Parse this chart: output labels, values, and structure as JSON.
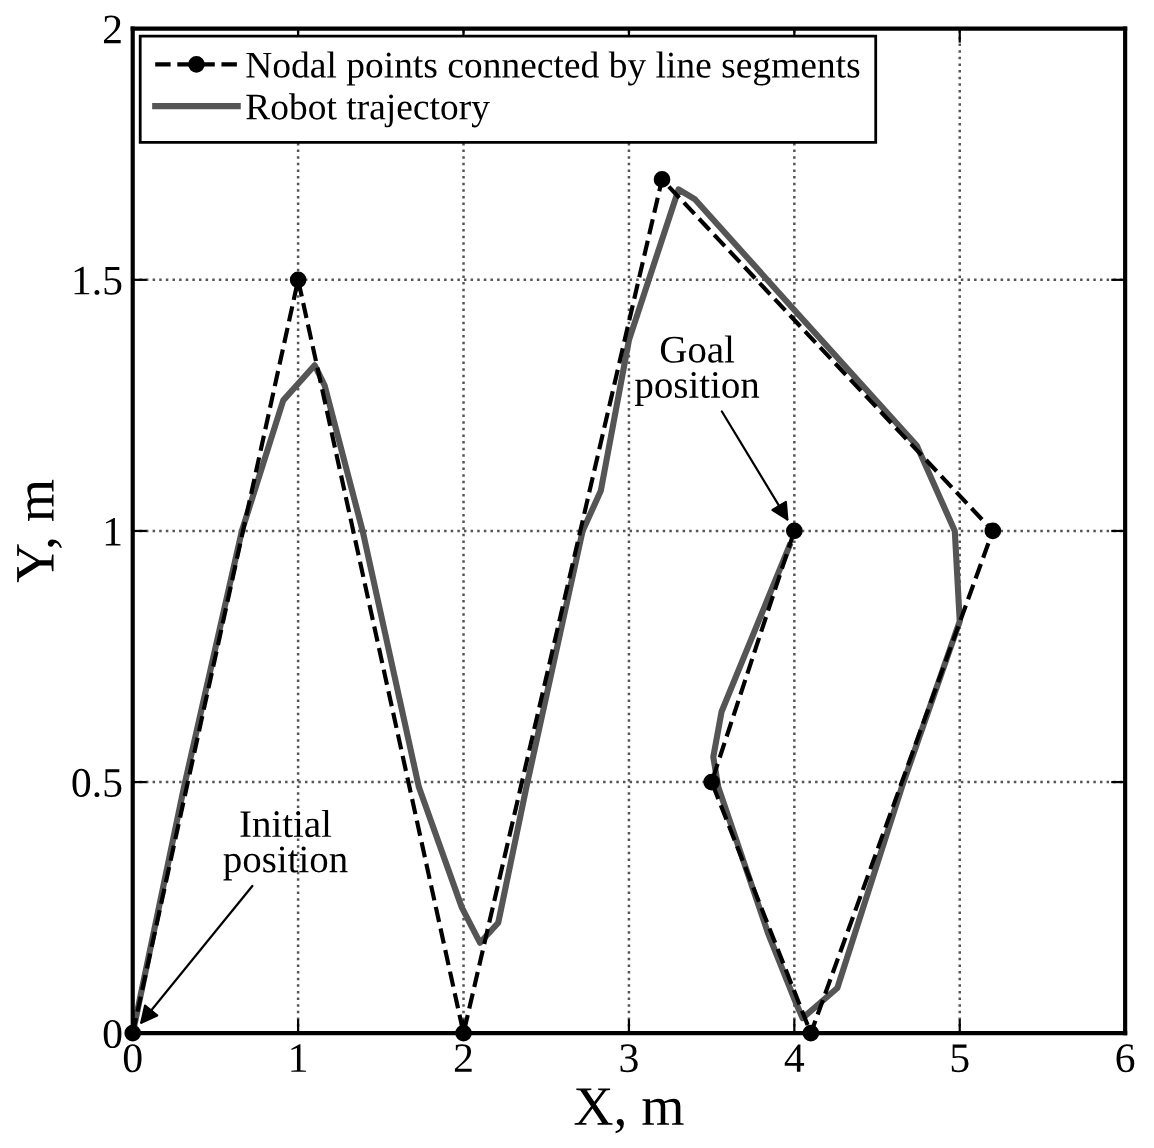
{
  "chart_data": {
    "type": "line",
    "xlabel": "X, m",
    "ylabel": "Y, m",
    "xlim": [
      0,
      6
    ],
    "ylim": [
      0,
      2
    ],
    "xticks": [
      0,
      1,
      2,
      3,
      4,
      5,
      6
    ],
    "yticks": [
      0,
      0.5,
      1,
      1.5,
      2
    ],
    "grid": true,
    "legend": "top left",
    "series": [
      {
        "name": "Nodal points connected by line segments",
        "color": "#000000",
        "marker": "circle",
        "line_style": "dashed",
        "x": [
          0,
          1,
          2,
          3.2,
          5.2,
          4.1,
          3.5,
          4
        ],
        "values": [
          0,
          1.5,
          0,
          1.7,
          1.0,
          0,
          0.5,
          1.0
        ]
      },
      {
        "name": "Robot trajectory",
        "color": "#555555",
        "marker": "none",
        "line_style": "solid",
        "x": [
          0,
          0.31,
          0.66,
          0.91,
          1.1,
          1.16,
          1.39,
          1.73,
          1.99,
          2.1,
          2.21,
          2.38,
          2.72,
          2.83,
          3.0,
          3.3,
          3.4,
          4.0,
          4.74,
          4.97,
          5.0,
          4.65,
          4.26,
          4.05,
          4.01,
          3.84,
          3.54,
          3.51,
          3.56,
          3.97
        ],
        "values": [
          0,
          0.49,
          1.0,
          1.26,
          1.33,
          1.29,
          1.0,
          0.49,
          0.25,
          0.18,
          0.22,
          0.49,
          1.0,
          1.08,
          1.38,
          1.68,
          1.66,
          1.44,
          1.17,
          1.0,
          0.82,
          0.49,
          0.09,
          0.03,
          0.06,
          0.2,
          0.49,
          0.55,
          0.64,
          0.97
        ]
      }
    ],
    "annotations": [
      {
        "text": "Initial\nposition",
        "x": 0,
        "y": 0
      },
      {
        "text": "Goal\nposition",
        "x": 4,
        "y": 1
      }
    ]
  }
}
